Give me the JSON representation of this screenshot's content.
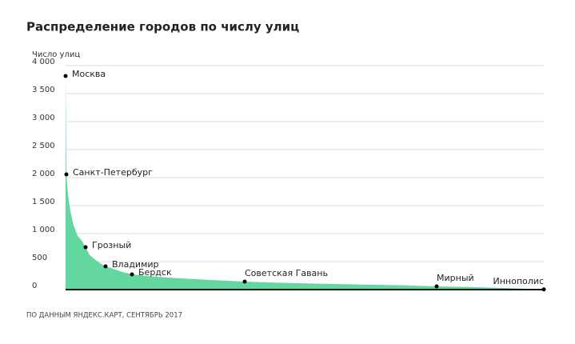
{
  "chart_data": {
    "type": "area",
    "title": "Распределение городов по числу улиц",
    "y_label": "Число улиц",
    "source": "ПО ДАННЫМ ЯНДЕКС.КАРТ, СЕНТЯБРЬ 2017",
    "color": "#62d8a0",
    "grid": true,
    "x": [
      0,
      1,
      3,
      6,
      10,
      15,
      20,
      25,
      30,
      40,
      50,
      60,
      70,
      83,
      100,
      130,
      160,
      190,
      224,
      260,
      300,
      340,
      380,
      420,
      464,
      500,
      540,
      570,
      598
    ],
    "values": [
      3814,
      2057,
      1700,
      1400,
      1150,
      960,
      880,
      757,
      620,
      500,
      414,
      370,
      320,
      271,
      245,
      212,
      188,
      166,
      143,
      125,
      110,
      98,
      87,
      76,
      57,
      48,
      33,
      18,
      3
    ],
    "labels": [
      "Москва",
      "Санкт-Петербург",
      null,
      null,
      null,
      null,
      null,
      "Грозный",
      null,
      null,
      "Владимир",
      null,
      null,
      "Бердск",
      null,
      null,
      null,
      null,
      "Советская Гавань",
      null,
      null,
      null,
      null,
      null,
      "Мирный",
      null,
      null,
      null,
      "Иннополис"
    ],
    "xlim": [
      0,
      598
    ],
    "ylim": [
      0,
      4000
    ],
    "yticks": [
      0,
      500,
      {
        "value": 1000,
        "label": "1 000"
      },
      {
        "value": 1500,
        "label": "1 500"
      },
      {
        "value": 2000,
        "label": "2 000"
      },
      {
        "value": 2500,
        "label": "2 500"
      },
      {
        "value": 3000,
        "label": "3 000"
      },
      {
        "value": 3500,
        "label": "3 500"
      },
      {
        "value": 4000,
        "label": "4 000"
      }
    ]
  }
}
